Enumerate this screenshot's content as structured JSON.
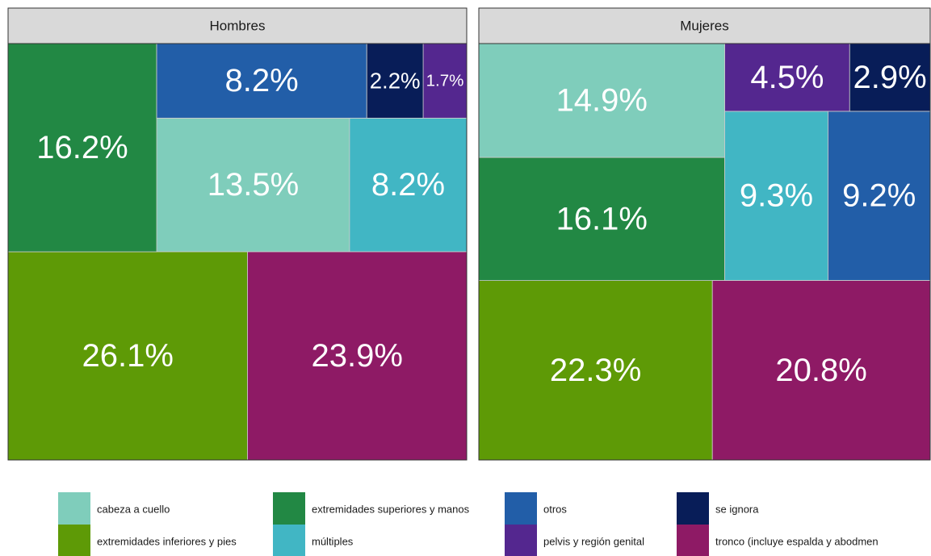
{
  "legend": {
    "categories": [
      "cabeza a cuello",
      "extremidades inferiores y pies",
      "extremidades superiores y manos",
      "múltiples",
      "otros",
      "pelvis y región genital",
      "se ignora",
      "tronco (incluye espalda y abodmen"
    ],
    "colors": [
      "#7fcdbb",
      "#5e9a06",
      "#228844",
      "#41b6c4",
      "#225ea8",
      "#54278f",
      "#081d58",
      "#8e1a65"
    ]
  },
  "chart_data": [
    {
      "type": "treemap",
      "title": "Hombres",
      "values": [
        13.5,
        26.1,
        16.2,
        8.2,
        8.2,
        1.7,
        2.2,
        23.9
      ],
      "value_labels": [
        "13.5%",
        "26.1%",
        "16.2%",
        "8.2%",
        "8.2%",
        "1.7%",
        "2.2%",
        "23.9%"
      ]
    },
    {
      "type": "treemap",
      "title": "Mujeres",
      "values": [
        14.9,
        22.3,
        16.1,
        9.3,
        9.2,
        4.5,
        2.9,
        20.8
      ],
      "value_labels": [
        "14.9%",
        "22.3%",
        "16.1%",
        "9.3%",
        "9.2%",
        "4.5%",
        "2.9%",
        "20.8%"
      ]
    }
  ]
}
